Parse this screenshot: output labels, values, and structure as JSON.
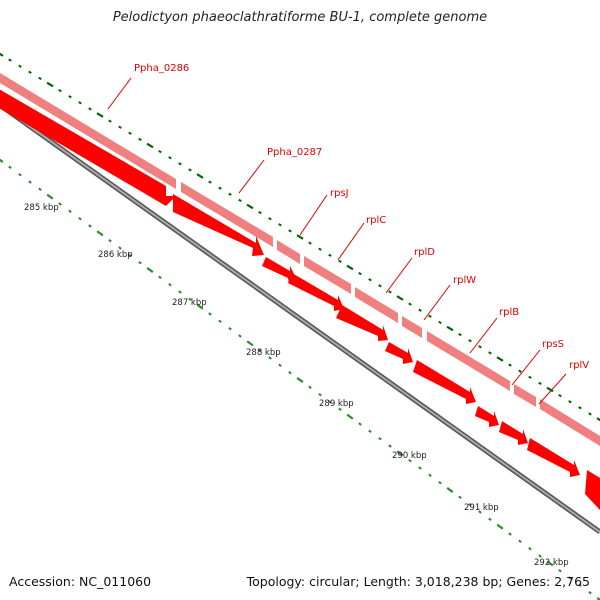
{
  "title": "Pelodictyon phaeoclathratiforme BU-1, complete genome",
  "footer": {
    "accession": "Accession: NC_011060",
    "topology": "Topology: circular; Length: 3,018,238 bp; Genes: 2,765"
  },
  "colors": {
    "gene_outer": "#f08080",
    "gene_inner": "#ff0000",
    "tick_major": "#006400",
    "tick_minor": "#2e8b2e",
    "backbone": "#808080",
    "label": "#e00000"
  },
  "kbp_labels": [
    "285 kbp",
    "286 kbp",
    "287 kbp",
    "288 kbp",
    "289 kbp",
    "290 kbp",
    "291 kbp",
    "292 kbp"
  ],
  "genes": [
    "Ppha_0286",
    "Ppha_0287",
    "rpsJ",
    "rplC",
    "rplD",
    "rplW",
    "rplB",
    "rpsS",
    "rplV"
  ]
}
